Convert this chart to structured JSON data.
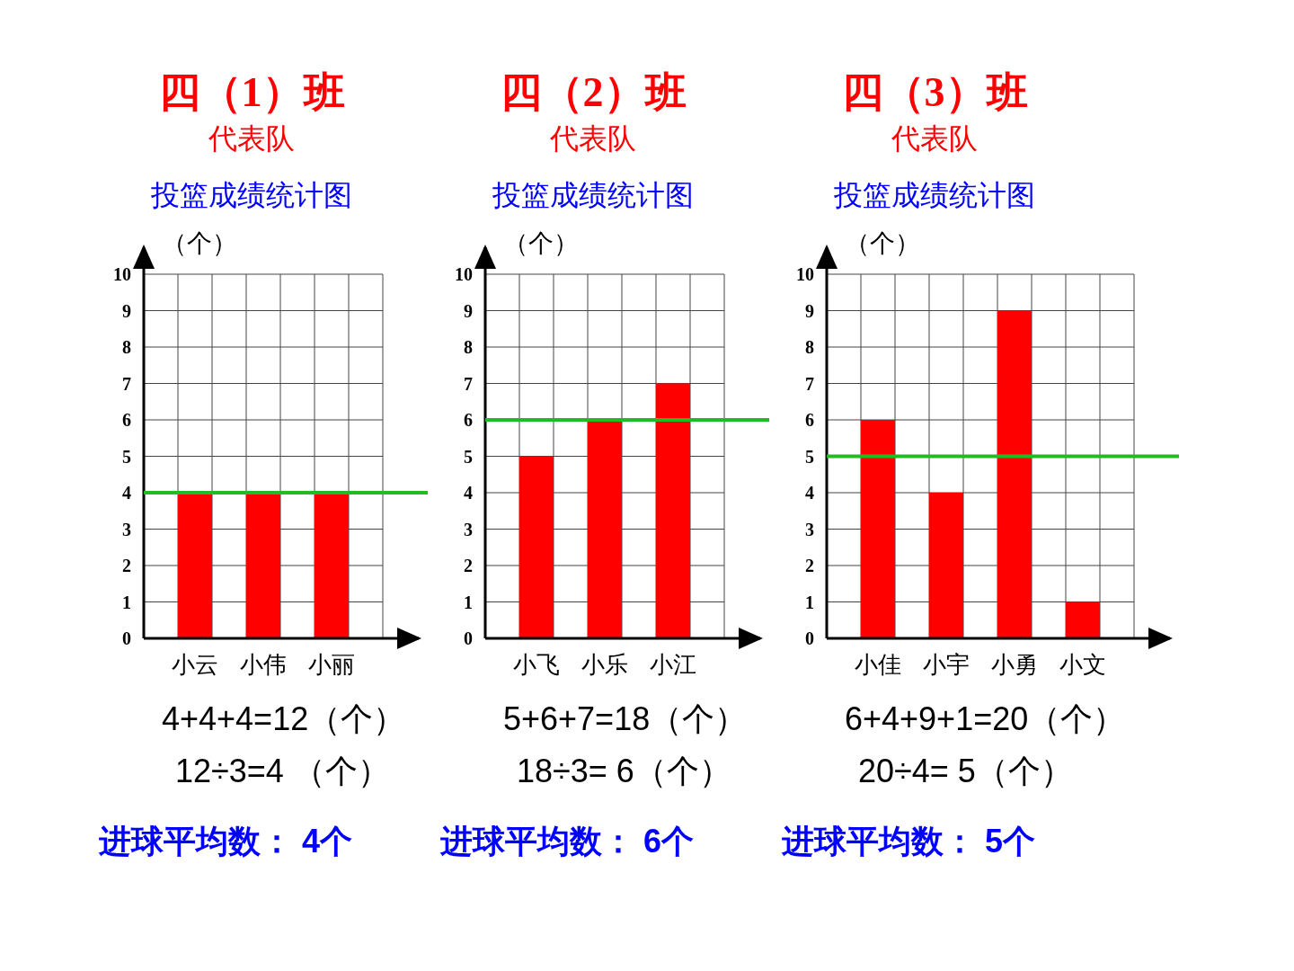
{
  "chart_data": [
    {
      "type": "bar",
      "title": "四（1）班",
      "subtitle": "代表队",
      "ylabel": "（个）",
      "categories": [
        "小云",
        "小伟",
        "小丽"
      ],
      "values": [
        4,
        4,
        4
      ],
      "color": "#ff0000",
      "ylim": [
        0,
        10
      ],
      "yticks": [
        0,
        1,
        2,
        3,
        4,
        5,
        6,
        7,
        8,
        9,
        10
      ],
      "grid": true,
      "ref_lines": [
        {
          "axis": "y",
          "value": 4,
          "color": "#22bb22"
        }
      ],
      "annotations": [
        "投篮成绩统计图",
        "4+4+4=12（个）",
        "12÷3=4 （个）",
        "进球平均数： 4个"
      ]
    },
    {
      "type": "bar",
      "title": "四（2）班",
      "subtitle": "代表队",
      "ylabel": "（个）",
      "categories": [
        "小飞",
        "小乐",
        "小江"
      ],
      "values": [
        5,
        6,
        7
      ],
      "color": "#ff0000",
      "ylim": [
        0,
        10
      ],
      "yticks": [
        0,
        1,
        2,
        3,
        4,
        5,
        6,
        7,
        8,
        9,
        10
      ],
      "grid": true,
      "ref_lines": [
        {
          "axis": "y",
          "value": 6,
          "color": "#22bb22"
        }
      ],
      "annotations": [
        "投篮成绩统计图",
        "5+6+7=18（个）",
        "18÷3= 6（个）",
        "进球平均数： 6个"
      ]
    },
    {
      "type": "bar",
      "title": "四（3）班",
      "subtitle": "代表队",
      "ylabel": "（个）",
      "categories": [
        "小佳",
        "小宇",
        "小勇",
        "小文"
      ],
      "values": [
        6,
        4,
        9,
        1
      ],
      "color": "#ff0000",
      "ylim": [
        0,
        10
      ],
      "yticks": [
        0,
        1,
        2,
        3,
        4,
        5,
        6,
        7,
        8,
        9,
        10
      ],
      "grid": true,
      "ref_lines": [
        {
          "axis": "y",
          "value": 5,
          "color": "#22bb22"
        }
      ],
      "annotations": [
        "投篮成绩统计图",
        "6+4+9+1=20（个）",
        "20÷4= 5（个）",
        "进球平均数： 5个"
      ]
    }
  ]
}
